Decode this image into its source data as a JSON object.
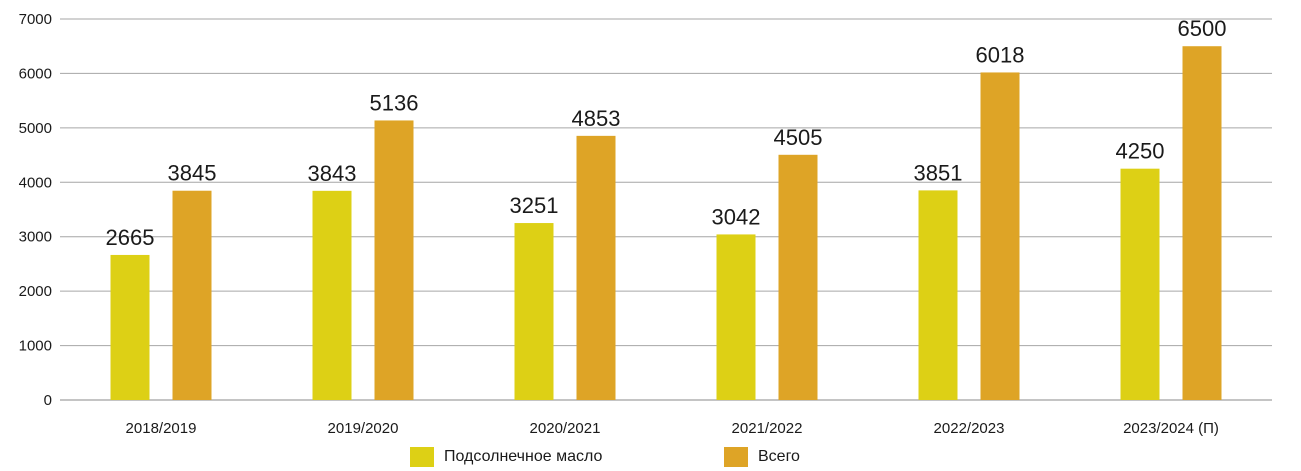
{
  "chart_data": {
    "type": "bar",
    "categories": [
      "2018/2019",
      "2019/2020",
      "2020/2021",
      "2021/2022",
      "2022/2023",
      "2023/2024 (П)"
    ],
    "series": [
      {
        "name": "Подсолнечное масло",
        "color": "#ddd015",
        "values": [
          2665,
          3843,
          3251,
          3042,
          3851,
          4250
        ]
      },
      {
        "name": "Всего",
        "color": "#dea426",
        "values": [
          3845,
          5136,
          4853,
          4505,
          6018,
          6500
        ]
      }
    ],
    "yticks": [
      "0",
      "1000",
      "2000",
      "3000",
      "4000",
      "5000",
      "6000",
      "7000"
    ],
    "ylim": [
      0,
      7000
    ],
    "grid": true,
    "legend_position": "bottom-center"
  }
}
